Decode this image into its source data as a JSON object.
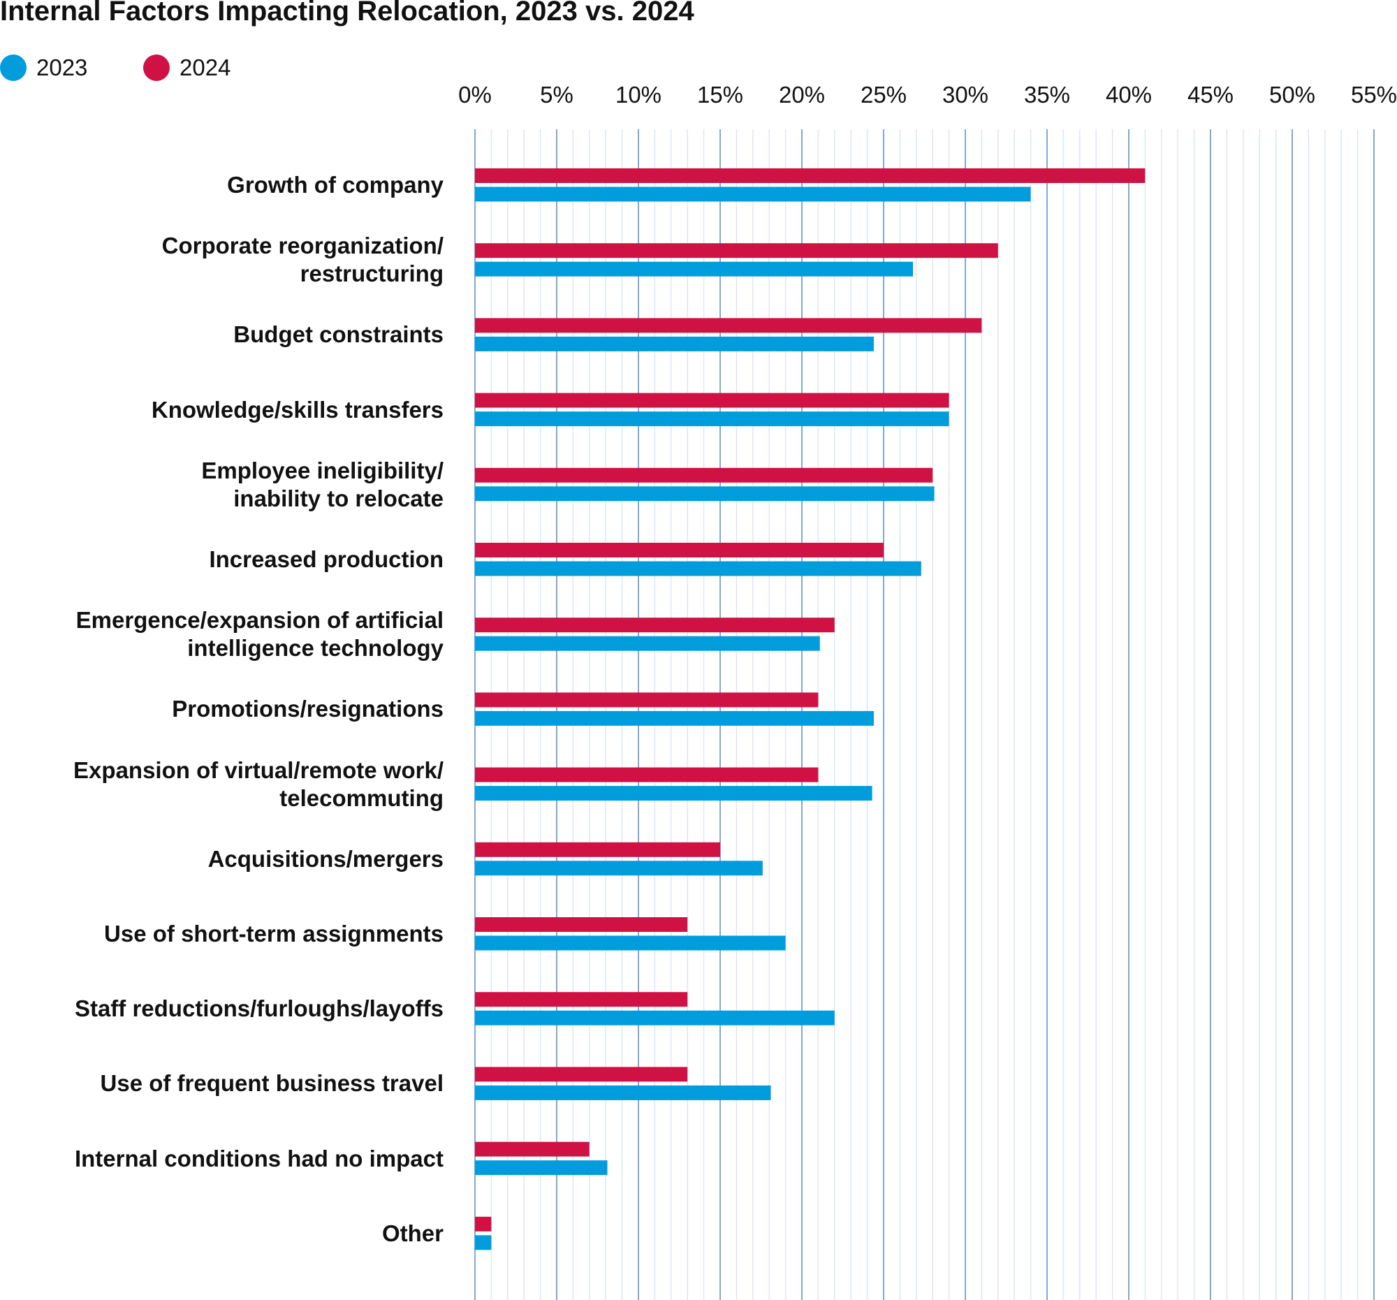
{
  "chart_data": {
    "type": "bar",
    "orientation": "horizontal",
    "title": "Internal Factors Impacting Relocation, 2023 vs. 2024",
    "xlabel": "",
    "ylabel": "",
    "xlim": [
      0,
      55
    ],
    "x_ticks": [
      "0%",
      "5%",
      "10%",
      "15%",
      "20%",
      "25%",
      "30%",
      "35%",
      "40%",
      "45%",
      "50%",
      "55%"
    ],
    "grid": true,
    "legend_position": "top-left",
    "categories": [
      "Growth of company",
      "Corporate reorganization/\nrestructuring",
      "Budget constraints",
      "Knowledge/skills transfers",
      "Employee ineligibility/\ninability to relocate",
      "Increased production",
      "Emergence/expansion of artificial\nintelligence technology",
      "Promotions/resignations",
      "Expansion of virtual/remote work/\ntelecommuting",
      "Acquisitions/mergers",
      "Use of short-term assignments",
      "Staff reductions/furloughs/layoffs",
      "Use of frequent business travel",
      "Internal conditions had no impact",
      "Other"
    ],
    "series": [
      {
        "name": "2024",
        "color": "#cf1243",
        "values": [
          41,
          32,
          31,
          29,
          28,
          25,
          22,
          21,
          21,
          15,
          13,
          13,
          13,
          7,
          1
        ]
      },
      {
        "name": "2023",
        "color": "#009cdc",
        "values": [
          34,
          26.8,
          24.4,
          29,
          28.1,
          27.3,
          21.1,
          24.4,
          24.3,
          17.6,
          19,
          22,
          18.1,
          8.1,
          1
        ]
      }
    ]
  }
}
